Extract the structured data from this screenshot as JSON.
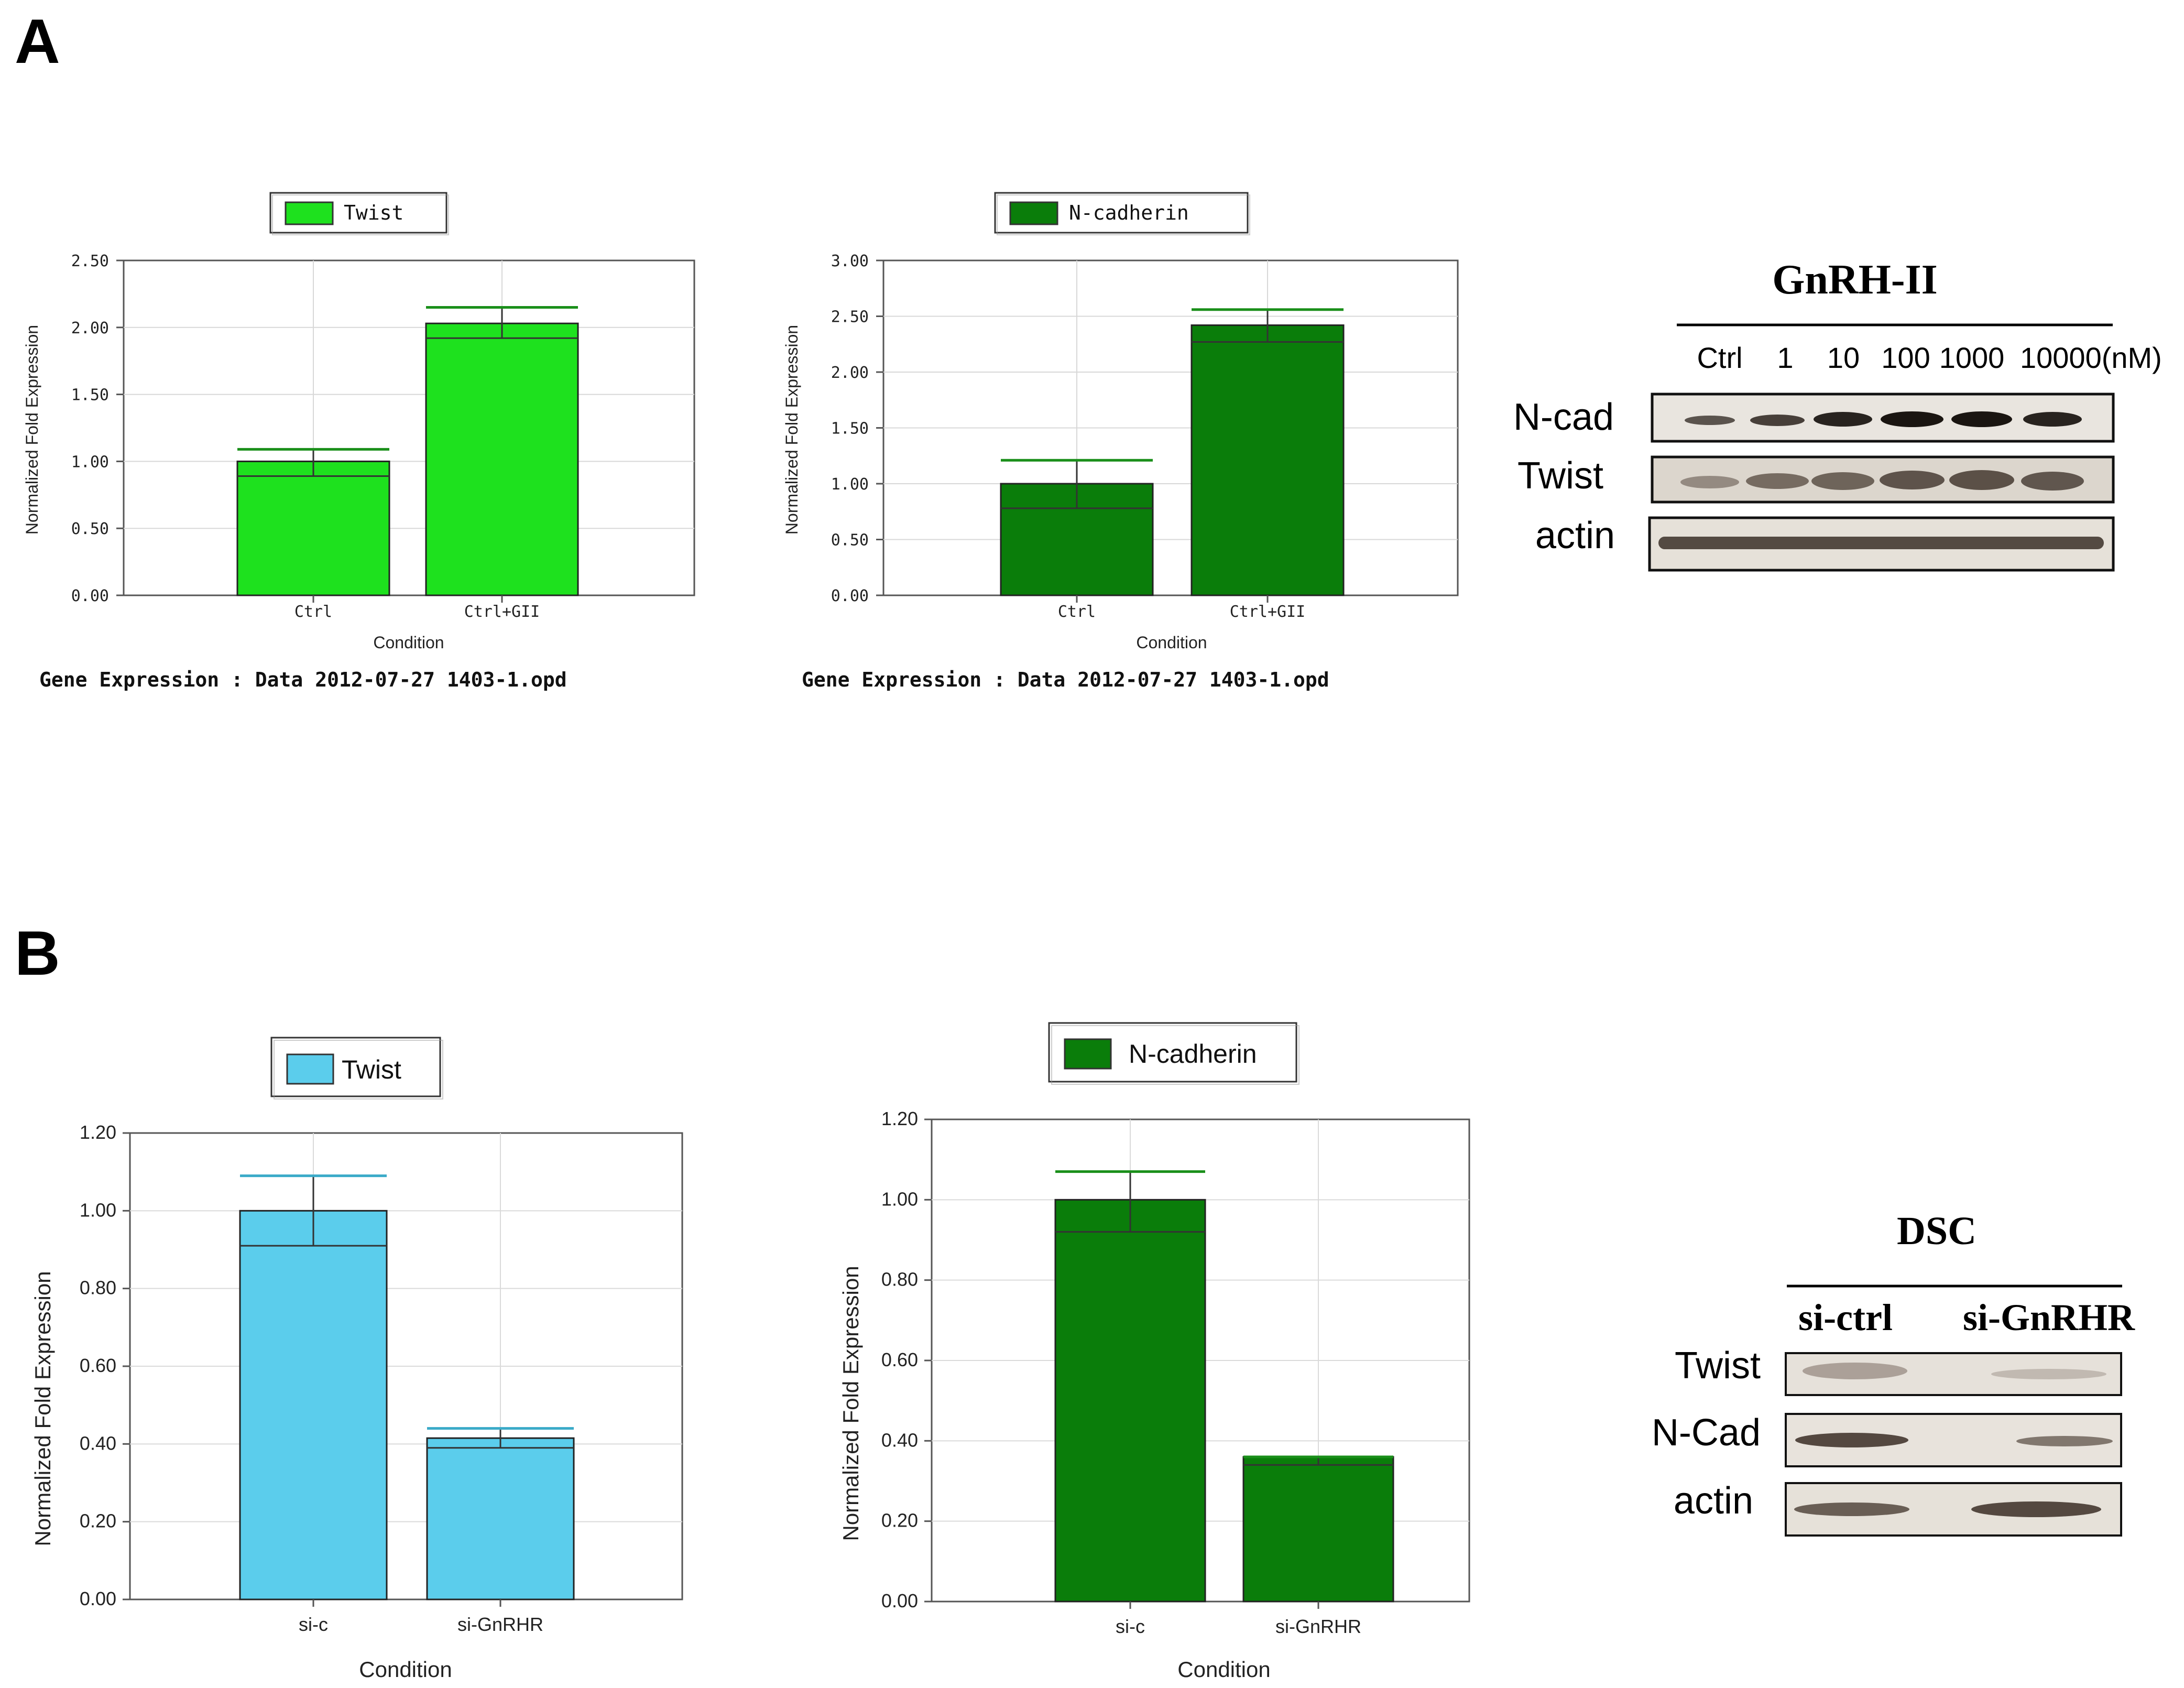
{
  "panels": {
    "A": "A",
    "B": "B"
  },
  "colors": {
    "bright_green": "#1ee11e",
    "dark_green": "#0a7d0a",
    "cyan": "#5bcdec",
    "errorbar_green": "#1a8f1a",
    "errorbar_cyan": "#3aaac8"
  },
  "chart_data": [
    {
      "id": "A1",
      "type": "bar",
      "legend": "Twist",
      "categories": [
        "Ctrl",
        "Ctrl+GII"
      ],
      "values": [
        1.0,
        2.03
      ],
      "error_low": [
        0.89,
        1.92
      ],
      "error_high": [
        1.09,
        2.15
      ],
      "ylim": [
        0,
        2.5
      ],
      "yticks": [
        "0.00",
        "0.50",
        "1.00",
        "1.50",
        "2.00",
        "2.50"
      ],
      "ylabel": "Normalized Fold Expression",
      "xlabel": "Condition",
      "footer": "Gene Expression : Data 2012-07-27 1403-1.opd",
      "color": "#1ee11e"
    },
    {
      "id": "A2",
      "type": "bar",
      "legend": "N-cadherin",
      "categories": [
        "Ctrl",
        "Ctrl+GII"
      ],
      "values": [
        1.0,
        2.42
      ],
      "error_low": [
        0.78,
        2.27
      ],
      "error_high": [
        1.21,
        2.56
      ],
      "ylim": [
        0,
        3.0
      ],
      "yticks": [
        "0.00",
        "0.50",
        "1.00",
        "1.50",
        "2.00",
        "2.50",
        "3.00"
      ],
      "ylabel": "Normalized Fold Expression",
      "xlabel": "Condition",
      "footer": "Gene Expression : Data 2012-07-27 1403-1.opd",
      "color": "#0a7d0a"
    },
    {
      "id": "B1",
      "type": "bar",
      "legend": "Twist",
      "categories": [
        "si-c",
        "si-GnRHR"
      ],
      "values": [
        1.0,
        0.415
      ],
      "error_low": [
        0.91,
        0.39
      ],
      "error_high": [
        1.09,
        0.44
      ],
      "ylim": [
        0,
        1.2
      ],
      "yticks": [
        "0.00",
        "0.20",
        "0.40",
        "0.60",
        "0.80",
        "1.00",
        "1.20"
      ],
      "ylabel": "Normalized Fold Expression",
      "xlabel": "Condition",
      "color": "#5bcdec"
    },
    {
      "id": "B2",
      "type": "bar",
      "legend": "N-cadherin",
      "categories": [
        "si-c",
        "si-GnRHR"
      ],
      "values": [
        1.0,
        0.36
      ],
      "error_low": [
        0.92,
        0.34
      ],
      "error_high": [
        1.07,
        0.36
      ],
      "ylim": [
        0,
        1.2
      ],
      "yticks": [
        "0.00",
        "0.20",
        "0.40",
        "0.60",
        "0.80",
        "1.00",
        "1.20"
      ],
      "ylabel": "Normalized Fold Expression",
      "xlabel": "Condition",
      "color": "#0a7d0a"
    }
  ],
  "blotA": {
    "title": "GnRH-II",
    "lanes": [
      "Ctrl",
      "1",
      "10",
      "100",
      "1000",
      "10000(nM)"
    ],
    "rows": [
      "N-cad",
      "Twist",
      "actin"
    ]
  },
  "blotB": {
    "title": "DSC",
    "lanes": [
      "si-ctrl",
      "si-GnRHR"
    ],
    "rows": [
      "Twist",
      "N-Cad",
      "actin"
    ]
  }
}
